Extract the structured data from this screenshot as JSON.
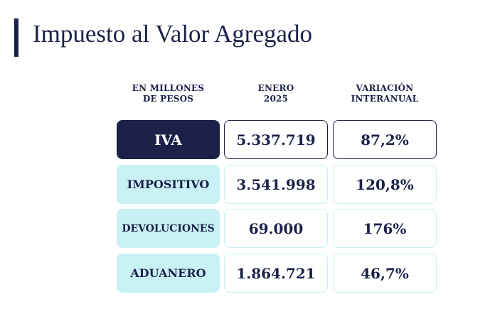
{
  "title": "Impuesto al Valor Agregado",
  "headers": {
    "col1": [
      "EN MILLONES",
      "DE PESOS"
    ],
    "col2": [
      "ENERO",
      "2025"
    ],
    "col3": [
      "VARIACIÓN",
      "INTERANUAL"
    ]
  },
  "rows": [
    {
      "label": "IVA",
      "value": "5.337.719",
      "variation": "87,2%"
    },
    {
      "label": "IMPOSITIVO",
      "value": "3.541.998",
      "variation": "120,8%"
    },
    {
      "label": "DEVOLUCIONES",
      "value": "69.000",
      "variation": "176%"
    },
    {
      "label": "ADUANERO",
      "value": "1.864.721",
      "variation": "46,7%"
    }
  ],
  "colors": {
    "navy": "#1b2148",
    "light_cyan": "#c9f1f5"
  }
}
